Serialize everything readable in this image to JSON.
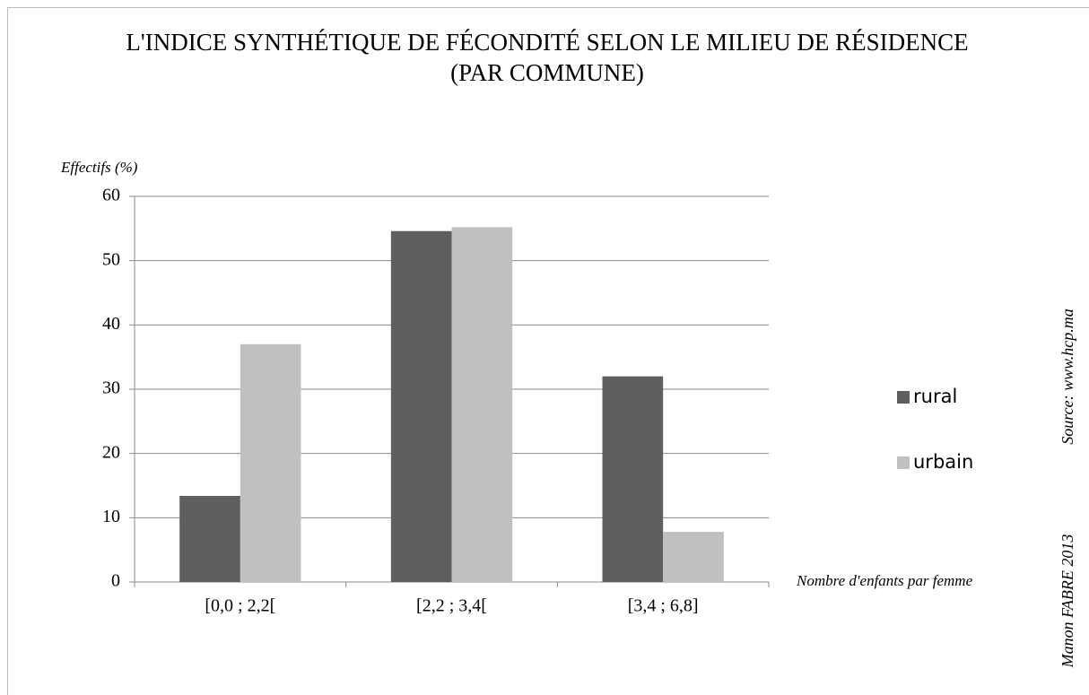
{
  "chart_data": {
    "type": "bar",
    "title": "L'INDICE SYNTHÉTIQUE DE FÉCONDITÉ SELON LE MILIEU DE RÉSIDENCE (PAR COMMUNE)",
    "y_label": "Effectifs (%)",
    "x_label": "Nombre d'enfants par femme",
    "source": "Source: www.hcp.ma",
    "author": "Manon FABRE 2013",
    "categories": [
      "[0,0 ; 2,2[",
      "[2,2 ; 3,4[",
      "[3,4 ; 6,8]"
    ],
    "series": [
      {
        "name": "rural",
        "color": "#5f5f5f",
        "values": [
          13.4,
          54.6,
          32
        ]
      },
      {
        "name": "urbain",
        "color": "#c0c0c0",
        "values": [
          37,
          55.2,
          7.8
        ]
      }
    ],
    "ylim": [
      0,
      60
    ],
    "yticks": [
      0,
      10,
      20,
      30,
      40,
      50,
      60
    ],
    "grid": true,
    "legend": "right"
  }
}
